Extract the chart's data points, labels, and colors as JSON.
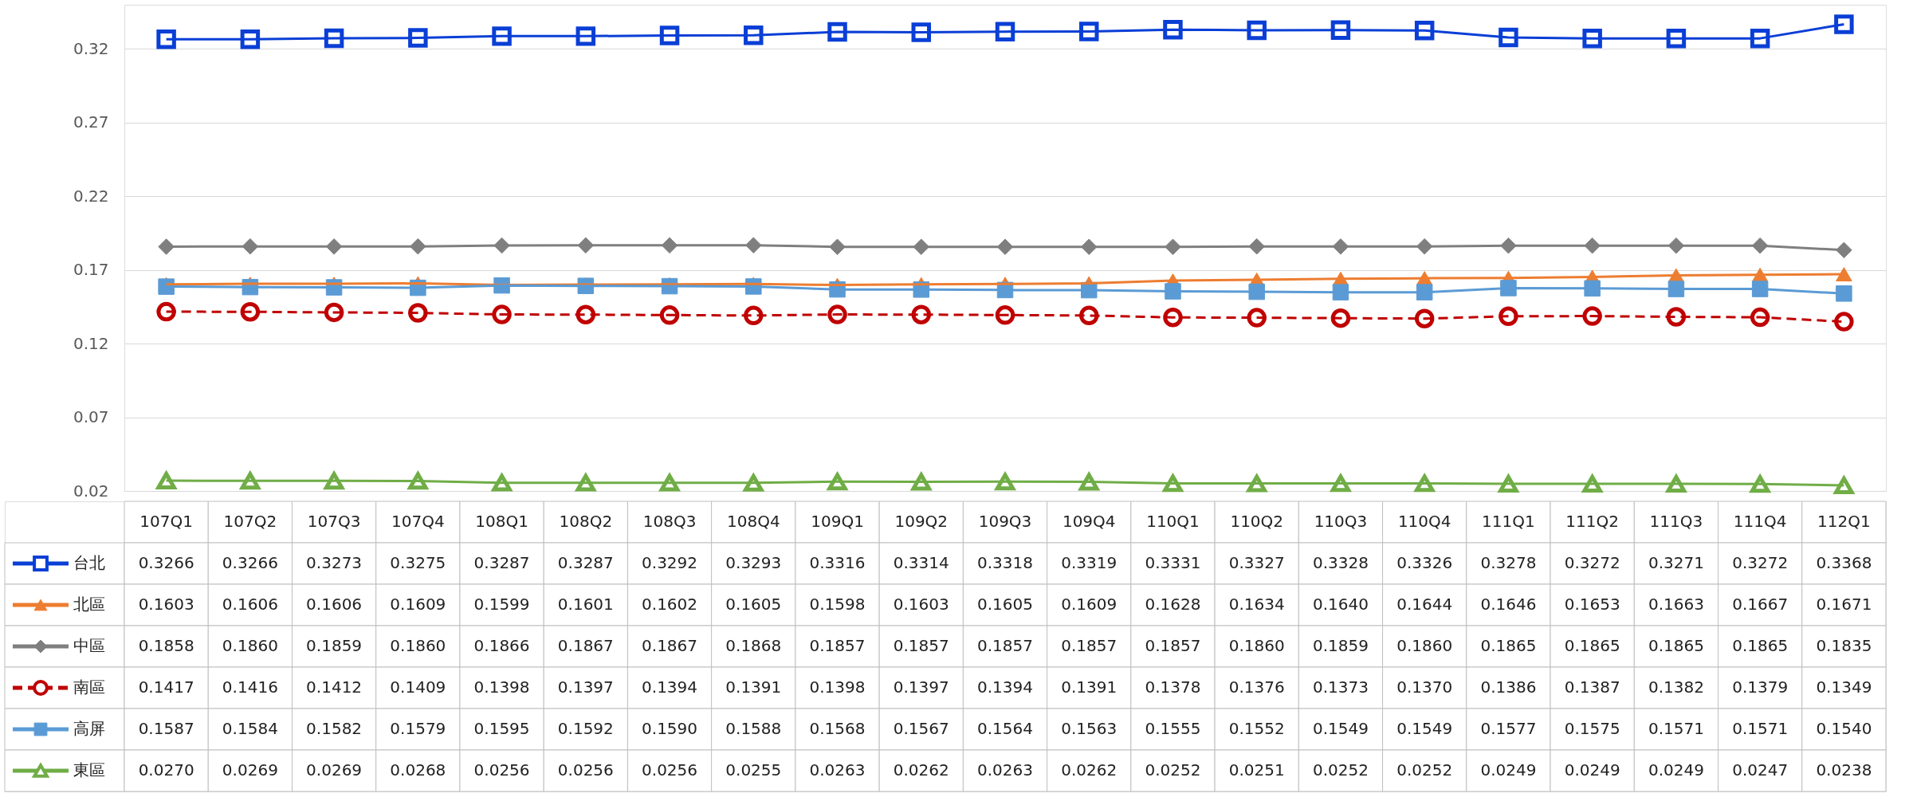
{
  "chart_data": {
    "type": "line",
    "categories": [
      "107Q1",
      "107Q2",
      "107Q3",
      "107Q4",
      "108Q1",
      "108Q2",
      "108Q3",
      "108Q4",
      "109Q1",
      "109Q2",
      "109Q3",
      "109Q4",
      "110Q1",
      "110Q2",
      "110Q3",
      "110Q4",
      "111Q1",
      "111Q2",
      "111Q3",
      "111Q4",
      "112Q1"
    ],
    "ylim": [
      0.02,
      0.35
    ],
    "yticks": [
      0.02,
      0.07,
      0.12,
      0.17,
      0.22,
      0.27,
      0.32
    ],
    "grid": "y",
    "legend": "bottom",
    "series": [
      {
        "name": "台北",
        "color": "#0a3fd6",
        "marker": "square",
        "line_style": "solid",
        "values": [
          0.3266,
          0.3266,
          0.3273,
          0.3275,
          0.3287,
          0.3287,
          0.3292,
          0.3293,
          0.3316,
          0.3314,
          0.3318,
          0.3319,
          0.3331,
          0.3327,
          0.3328,
          0.3326,
          0.3278,
          0.3272,
          0.3271,
          0.3272,
          0.3368
        ],
        "value_labels": [
          "0.3266",
          "0.3266",
          "0.3273",
          "0.3275",
          "0.3287",
          "0.3287",
          "0.3292",
          "0.3293",
          "0.3316",
          "0.3314",
          "0.3318",
          "0.3319",
          "0.3331",
          "0.3327",
          "0.3328",
          "0.3326",
          "0.3278",
          "0.3272",
          "0.3271",
          "0.3272",
          "0.3368"
        ]
      },
      {
        "name": "北區",
        "color": "#ed7d31",
        "marker": "triangle",
        "line_style": "solid",
        "values": [
          0.1603,
          0.1606,
          0.1606,
          0.1609,
          0.1599,
          0.1601,
          0.1602,
          0.1605,
          0.1598,
          0.1603,
          0.1605,
          0.1609,
          0.1628,
          0.1634,
          0.164,
          0.1644,
          0.1646,
          0.1653,
          0.1663,
          0.1667,
          0.1671
        ],
        "value_labels": [
          "0.1603",
          "0.1606",
          "0.1606",
          "0.1609",
          "0.1599",
          "0.1601",
          "0.1602",
          "0.1605",
          "0.1598",
          "0.1603",
          "0.1605",
          "0.1609",
          "0.1628",
          "0.1634",
          "0.1640",
          "0.1644",
          "0.1646",
          "0.1653",
          "0.1663",
          "0.1667",
          "0.1671"
        ]
      },
      {
        "name": "中區",
        "color": "#7f7f7f",
        "marker": "diamond",
        "line_style": "solid",
        "values": [
          0.1858,
          0.186,
          0.1859,
          0.186,
          0.1866,
          0.1867,
          0.1867,
          0.1868,
          0.1857,
          0.1857,
          0.1857,
          0.1857,
          0.1857,
          0.186,
          0.1859,
          0.186,
          0.1865,
          0.1865,
          0.1865,
          0.1865,
          0.1835
        ],
        "value_labels": [
          "0.1858",
          "0.1860",
          "0.1859",
          "0.1860",
          "0.1866",
          "0.1867",
          "0.1867",
          "0.1868",
          "0.1857",
          "0.1857",
          "0.1857",
          "0.1857",
          "0.1857",
          "0.1860",
          "0.1859",
          "0.1860",
          "0.1865",
          "0.1865",
          "0.1865",
          "0.1865",
          "0.1835"
        ]
      },
      {
        "name": "南區",
        "color": "#c00000",
        "marker": "circle",
        "line_style": "dashed",
        "values": [
          0.1417,
          0.1416,
          0.1412,
          0.1409,
          0.1398,
          0.1397,
          0.1394,
          0.1391,
          0.1398,
          0.1397,
          0.1394,
          0.1391,
          0.1378,
          0.1376,
          0.1373,
          0.137,
          0.1386,
          0.1387,
          0.1382,
          0.1379,
          0.1349
        ],
        "value_labels": [
          "0.1417",
          "0.1416",
          "0.1412",
          "0.1409",
          "0.1398",
          "0.1397",
          "0.1394",
          "0.1391",
          "0.1398",
          "0.1397",
          "0.1394",
          "0.1391",
          "0.1378",
          "0.1376",
          "0.1373",
          "0.1370",
          "0.1386",
          "0.1387",
          "0.1382",
          "0.1379",
          "0.1349"
        ]
      },
      {
        "name": "高屏",
        "color": "#5b9bd5",
        "marker": "square",
        "line_style": "solid",
        "values": [
          0.1587,
          0.1584,
          0.1582,
          0.1579,
          0.1595,
          0.1592,
          0.159,
          0.1588,
          0.1568,
          0.1567,
          0.1564,
          0.1563,
          0.1555,
          0.1552,
          0.1549,
          0.1549,
          0.1577,
          0.1575,
          0.1571,
          0.1571,
          0.154
        ],
        "value_labels": [
          "0.1587",
          "0.1584",
          "0.1582",
          "0.1579",
          "0.1595",
          "0.1592",
          "0.1590",
          "0.1588",
          "0.1568",
          "0.1567",
          "0.1564",
          "0.1563",
          "0.1555",
          "0.1552",
          "0.1549",
          "0.1549",
          "0.1577",
          "0.1575",
          "0.1571",
          "0.1571",
          "0.1540"
        ]
      },
      {
        "name": "東區",
        "color": "#70ad47",
        "marker": "triangle",
        "line_style": "solid",
        "values": [
          0.027,
          0.0269,
          0.0269,
          0.0268,
          0.0256,
          0.0256,
          0.0256,
          0.0255,
          0.0263,
          0.0262,
          0.0263,
          0.0262,
          0.0252,
          0.0251,
          0.0252,
          0.0252,
          0.0249,
          0.0249,
          0.0249,
          0.0247,
          0.0238
        ],
        "value_labels": [
          "0.0270",
          "0.0269",
          "0.0269",
          "0.0268",
          "0.0256",
          "0.0256",
          "0.0256",
          "0.0255",
          "0.0263",
          "0.0262",
          "0.0263",
          "0.0262",
          "0.0252",
          "0.0251",
          "0.0252",
          "0.0252",
          "0.0249",
          "0.0249",
          "0.0249",
          "0.0247",
          "0.0238"
        ]
      }
    ]
  }
}
